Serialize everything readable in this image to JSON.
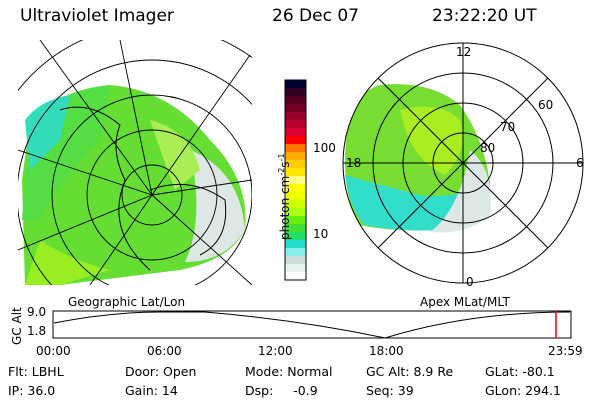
{
  "header": {
    "instrument": "Ultraviolet Imager",
    "date": "26 Dec 07",
    "time": "23:22:20 UT"
  },
  "left_panel": {
    "label": "Geographic Lat/Lon"
  },
  "right_panel": {
    "label": "Apex MLat/MLT",
    "lat_labels": [
      "80",
      "70",
      "60"
    ],
    "mlt_labels": {
      "top": "12",
      "bottom": "0",
      "left": "18",
      "right": "6"
    }
  },
  "colorbar": {
    "label": "photon cm",
    "label_exp1": "-2",
    "label_s": "s",
    "label_exp2": "-1",
    "ticks": [
      "100",
      "10"
    ],
    "scale": "log",
    "colors": [
      "#000033",
      "#330022",
      "#550022",
      "#770022",
      "#99002a",
      "#bb0030",
      "#dd0033",
      "#ff0000",
      "#ff7700",
      "#ffaa00",
      "#ffcc00",
      "#ffe600",
      "#ffff88",
      "#ffff00",
      "#eeff00",
      "#ccff00",
      "#aaff11",
      "#66ee11",
      "#44dd33",
      "#22dd66",
      "#22ddcc",
      "#88eeee",
      "#ccdddd",
      "#e6f2ec",
      "#ffffff"
    ]
  },
  "altitude_plot": {
    "ylabel": "GC Alt",
    "yticks": [
      "9.0",
      "1.8"
    ],
    "xticks": [
      "00:00",
      "06:00",
      "12:00",
      "18:00",
      "23:59"
    ],
    "current_time_marker_color": "#ff0000"
  },
  "info": {
    "flt": "Flt: LBHL",
    "ip": "IP: 36.0",
    "door": "Door: Open",
    "gain": "Gain: 14",
    "mode": "Mode: Normal",
    "dsp_label": "Dsp:",
    "dsp_value": "-0.9",
    "gc_alt": "GC Alt: 8.9 Re",
    "seq": "Seq: 39",
    "glat": "GLat: -80.1",
    "glon": "GLon: 294.1"
  }
}
